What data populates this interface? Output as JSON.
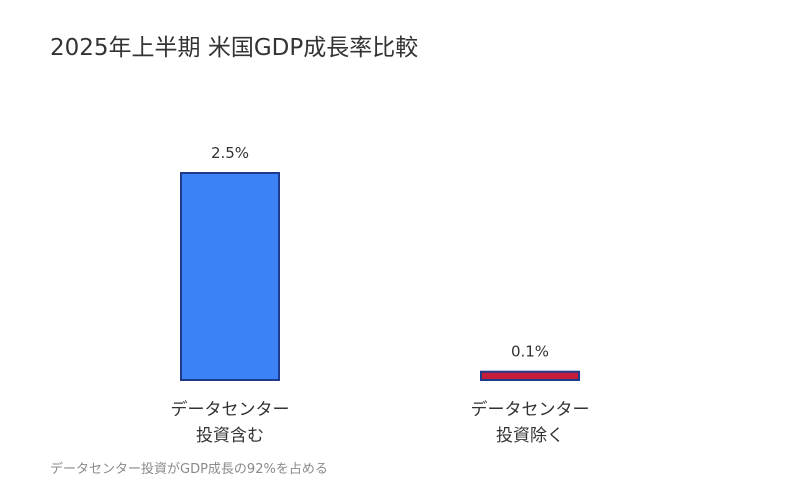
{
  "title": "2025年上半期 米国GDP成長率比較",
  "note": "データセンター投資がGDP成長の92%を占める",
  "chart_data": {
    "type": "bar",
    "title": "2025年上半期 米国GDP成長率比較",
    "categories": [
      [
        "データセンター",
        "投資含む"
      ],
      [
        "データセンター",
        "投資除く"
      ]
    ],
    "values": [
      2.5,
      0.1
    ],
    "value_labels": [
      "2.5%",
      "0.1%"
    ],
    "colors": [
      "#3b82f6",
      "#c41e3a"
    ],
    "border_color": "#1e3a8a",
    "ylim": [
      0,
      2.5
    ],
    "grid": false,
    "legend": "none"
  }
}
